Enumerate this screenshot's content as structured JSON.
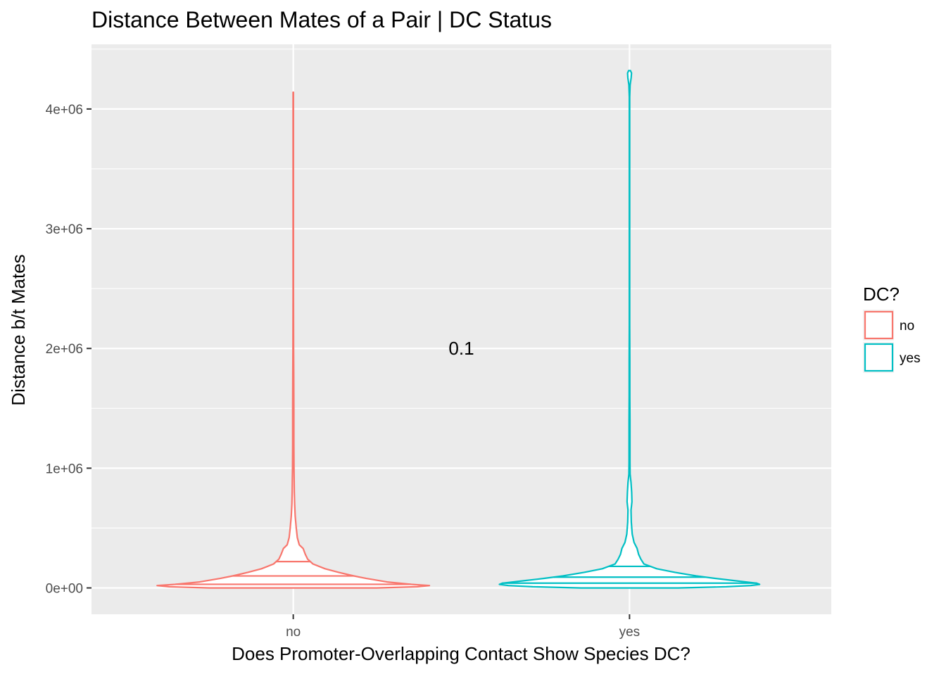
{
  "chart_data": {
    "type": "violin",
    "title": "Distance Between Mates of a Pair | DC Status",
    "xlabel": "Does Promoter-Overlapping Contact Show Species DC?",
    "ylabel": "Distance b/t Mates",
    "categories": [
      "no",
      "yes"
    ],
    "y_ticks": [
      0,
      1000000,
      2000000,
      3000000,
      4000000
    ],
    "y_tick_labels": [
      "0e+00",
      "1e+06",
      "2e+06",
      "3e+06",
      "4e+06"
    ],
    "ylim": [
      -220000,
      4540000
    ],
    "grid": true,
    "annotation": {
      "text": "0.1",
      "x": 1.5,
      "y": 2000000
    },
    "legend": {
      "title": "DC?",
      "position": "right",
      "entries": [
        {
          "label": "no",
          "color": "#F8766D"
        },
        {
          "label": "yes",
          "color": "#00BFC4"
        }
      ]
    },
    "series": [
      {
        "name": "no",
        "color": "#F8766D",
        "min": 0,
        "max": 4140000,
        "quantiles": [
          30000,
          100000,
          220000
        ],
        "profile": [
          [
            0,
            0.55
          ],
          [
            10000,
            0.82
          ],
          [
            20000,
            0.9
          ],
          [
            30000,
            0.78
          ],
          [
            50000,
            0.62
          ],
          [
            80000,
            0.48
          ],
          [
            100000,
            0.4
          ],
          [
            130000,
            0.3
          ],
          [
            160000,
            0.21
          ],
          [
            200000,
            0.13
          ],
          [
            240000,
            0.095
          ],
          [
            280000,
            0.08
          ],
          [
            330000,
            0.065
          ],
          [
            360000,
            0.04
          ],
          [
            420000,
            0.027
          ],
          [
            500000,
            0.02
          ],
          [
            600000,
            0.013
          ],
          [
            700000,
            0.009
          ],
          [
            800000,
            0.007
          ],
          [
            900000,
            0.006
          ],
          [
            1000000,
            0.005
          ],
          [
            1200000,
            0.004
          ],
          [
            1500000,
            0.004
          ],
          [
            1800000,
            0.003
          ],
          [
            2000000,
            0.002
          ],
          [
            2500000,
            0.001
          ],
          [
            3000000,
            0.001
          ],
          [
            3500000,
            0.001
          ],
          [
            4140000,
            0.001
          ]
        ]
      },
      {
        "name": "yes",
        "color": "#00BFC4",
        "min": 0,
        "max": 4320000,
        "quantiles": [
          40000,
          90000,
          180000
        ],
        "profile": [
          [
            0,
            0.32
          ],
          [
            10000,
            0.64
          ],
          [
            20000,
            0.8
          ],
          [
            30000,
            0.86
          ],
          [
            40000,
            0.84
          ],
          [
            60000,
            0.7
          ],
          [
            80000,
            0.56
          ],
          [
            100000,
            0.44
          ],
          [
            130000,
            0.3
          ],
          [
            160000,
            0.18
          ],
          [
            200000,
            0.095
          ],
          [
            240000,
            0.075
          ],
          [
            280000,
            0.06
          ],
          [
            330000,
            0.05
          ],
          [
            380000,
            0.03
          ],
          [
            450000,
            0.018
          ],
          [
            550000,
            0.012
          ],
          [
            650000,
            0.01
          ],
          [
            720000,
            0.016
          ],
          [
            800000,
            0.014
          ],
          [
            880000,
            0.01
          ],
          [
            950000,
            0.004
          ],
          [
            1050000,
            0.003
          ],
          [
            1200000,
            0.003
          ],
          [
            1400000,
            0.003
          ],
          [
            1600000,
            0.002
          ],
          [
            1900000,
            0.002
          ],
          [
            2200000,
            0.001
          ],
          [
            3000000,
            0.001
          ],
          [
            3800000,
            0.001
          ],
          [
            4100000,
            0.001
          ],
          [
            4200000,
            0.004
          ],
          [
            4260000,
            0.011
          ],
          [
            4300000,
            0.013
          ],
          [
            4320000,
            0.006
          ]
        ]
      }
    ]
  }
}
